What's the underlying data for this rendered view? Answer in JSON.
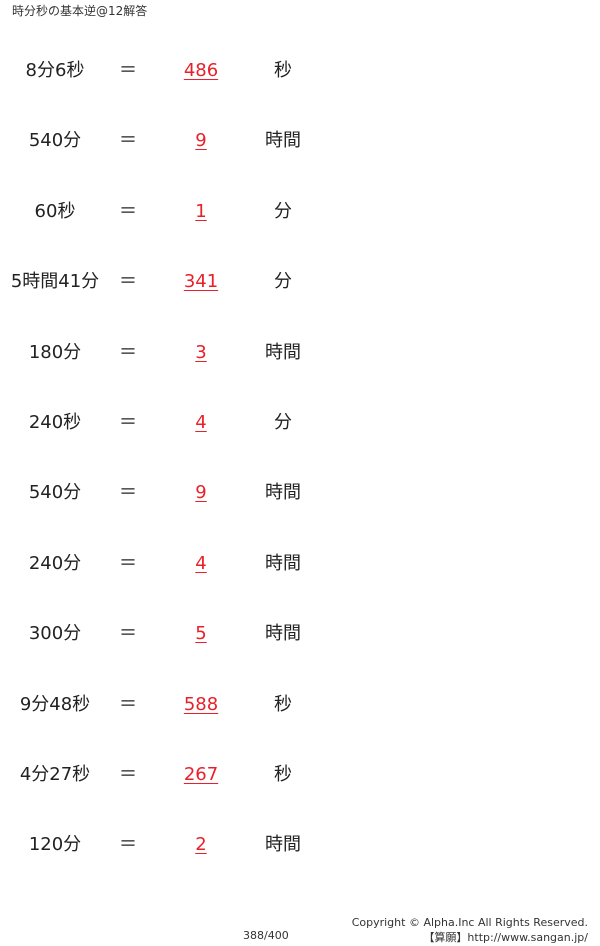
{
  "title": "時分秒の基本逆@12解答",
  "equals_sign": "＝",
  "answer_color": "#e8202a",
  "problems": [
    {
      "question": "8分6秒",
      "answer": "486",
      "unit": "秒"
    },
    {
      "question": "540分",
      "answer": "9",
      "unit": "時間"
    },
    {
      "question": "60秒",
      "answer": "1",
      "unit": "分"
    },
    {
      "question": "5時間41分",
      "answer": "341",
      "unit": "分"
    },
    {
      "question": "180分",
      "answer": "3",
      "unit": "時間"
    },
    {
      "question": "240秒",
      "answer": "4",
      "unit": "分"
    },
    {
      "question": "540分",
      "answer": "9",
      "unit": "時間"
    },
    {
      "question": "240分",
      "answer": "4",
      "unit": "時間"
    },
    {
      "question": "300分",
      "answer": "5",
      "unit": "時間"
    },
    {
      "question": "9分48秒",
      "answer": "588",
      "unit": "秒"
    },
    {
      "question": "4分27秒",
      "answer": "267",
      "unit": "秒"
    },
    {
      "question": "120分",
      "answer": "2",
      "unit": "時間"
    }
  ],
  "footer": {
    "page": "388/400",
    "copyright": "Copyright © Alpha.Inc All Rights Reserved.",
    "site": "【算願】http://www.sangan.jp/"
  }
}
